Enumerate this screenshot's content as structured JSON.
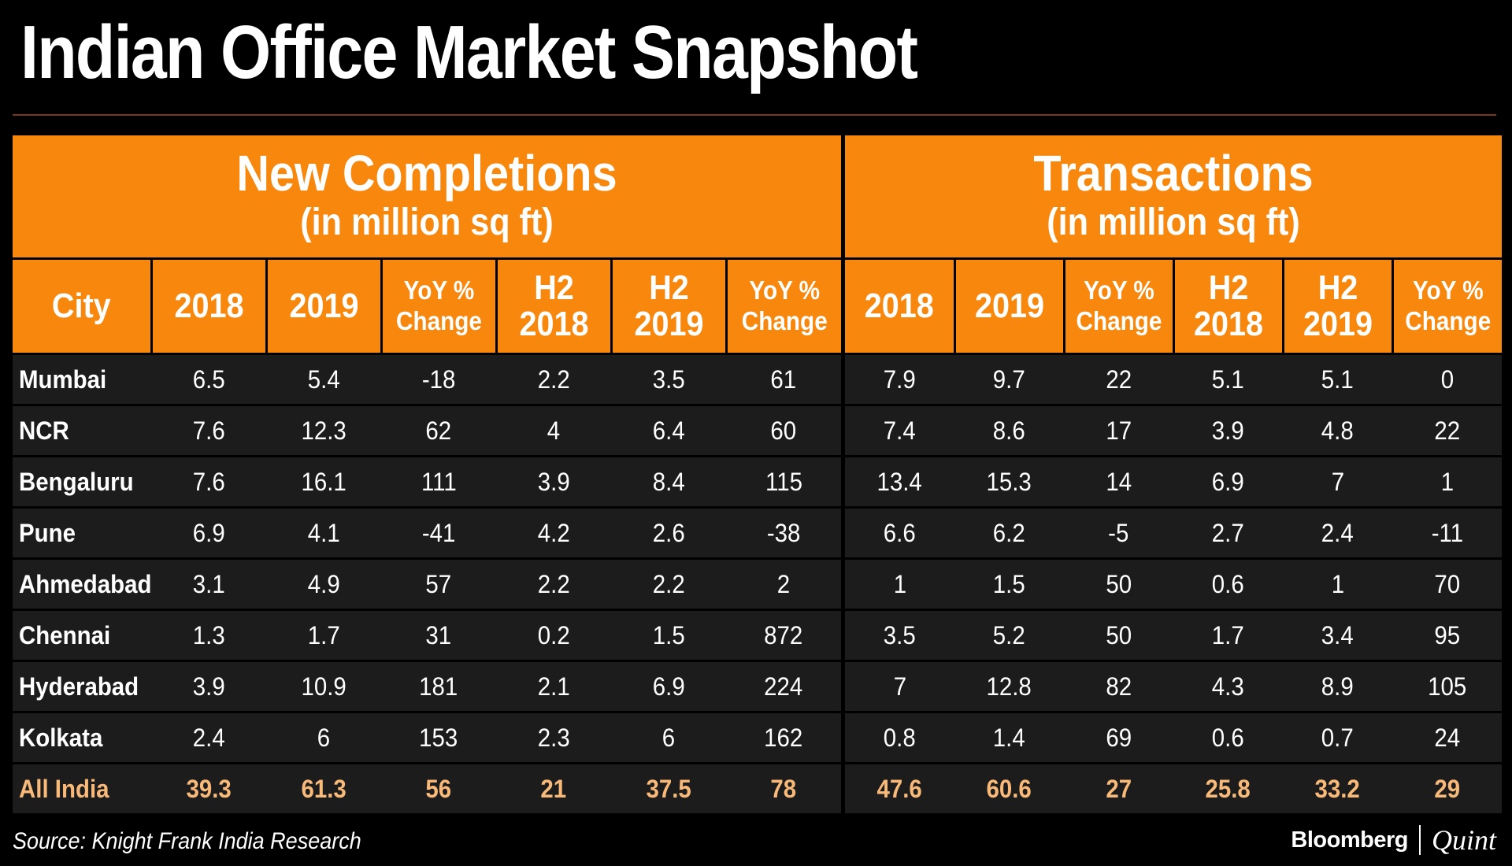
{
  "title": "Indian Office Market Snapshot",
  "groups": {
    "completions": {
      "title": "New Completions",
      "unit": "(in million sq ft)"
    },
    "transactions": {
      "title": "Transactions",
      "unit": "(in million sq ft)"
    }
  },
  "headers": {
    "city": "City",
    "c2018": "2018",
    "c2019": "2019",
    "yoy_line1": "YoY %",
    "yoy_line2": "Change",
    "h2_line1": "H2",
    "h2_2018_line2": "2018",
    "h2_2019_line2": "2019"
  },
  "chart_data": {
    "type": "table",
    "title": "Indian Office Market Snapshot",
    "columns": [
      "City",
      "New Completions 2018",
      "New Completions 2019",
      "New Completions YoY % Change",
      "New Completions H2 2018",
      "New Completions H2 2019",
      "New Completions YoY % Change (H2)",
      "Transactions 2018",
      "Transactions 2019",
      "Transactions YoY % Change",
      "Transactions H2 2018",
      "Transactions H2 2019",
      "Transactions YoY % Change (H2)"
    ],
    "rows": [
      {
        "city": "Mumbai",
        "values": [
          "6.5",
          "5.4",
          "-18",
          "2.2",
          "3.5",
          "61",
          "7.9",
          "9.7",
          "22",
          "5.1",
          "5.1",
          "0"
        ]
      },
      {
        "city": "NCR",
        "values": [
          "7.6",
          "12.3",
          "62",
          "4",
          "6.4",
          "60",
          "7.4",
          "8.6",
          "17",
          "3.9",
          "4.8",
          "22"
        ]
      },
      {
        "city": "Bengaluru",
        "values": [
          "7.6",
          "16.1",
          "111",
          "3.9",
          "8.4",
          "115",
          "13.4",
          "15.3",
          "14",
          "6.9",
          "7",
          "1"
        ]
      },
      {
        "city": "Pune",
        "values": [
          "6.9",
          "4.1",
          "-41",
          "4.2",
          "2.6",
          "-38",
          "6.6",
          "6.2",
          "-5",
          "2.7",
          "2.4",
          "-11"
        ]
      },
      {
        "city": "Ahmedabad",
        "values": [
          "3.1",
          "4.9",
          "57",
          "2.2",
          "2.2",
          "2",
          "1",
          "1.5",
          "50",
          "0.6",
          "1",
          "70"
        ]
      },
      {
        "city": "Chennai",
        "values": [
          "1.3",
          "1.7",
          "31",
          "0.2",
          "1.5",
          "872",
          "3.5",
          "5.2",
          "50",
          "1.7",
          "3.4",
          "95"
        ]
      },
      {
        "city": "Hyderabad",
        "values": [
          "3.9",
          "10.9",
          "181",
          "2.1",
          "6.9",
          "224",
          "7",
          "12.8",
          "82",
          "4.3",
          "8.9",
          "105"
        ]
      },
      {
        "city": "Kolkata",
        "values": [
          "2.4",
          "6",
          "153",
          "2.3",
          "6",
          "162",
          "0.8",
          "1.4",
          "69",
          "0.6",
          "0.7",
          "24"
        ]
      }
    ],
    "total": {
      "city": "All India",
      "values": [
        "39.3",
        "61.3",
        "56",
        "21",
        "37.5",
        "78",
        "47.6",
        "60.6",
        "27",
        "25.8",
        "33.2",
        "29"
      ]
    }
  },
  "colors": {
    "header_orange": "#f7870d",
    "row_bg": "#1c1c1c",
    "total_text": "#f8b979",
    "background": "#000000"
  },
  "source": "Source: Knight Frank India Research",
  "logo": {
    "left": "Bloomberg",
    "right": "Quint"
  }
}
